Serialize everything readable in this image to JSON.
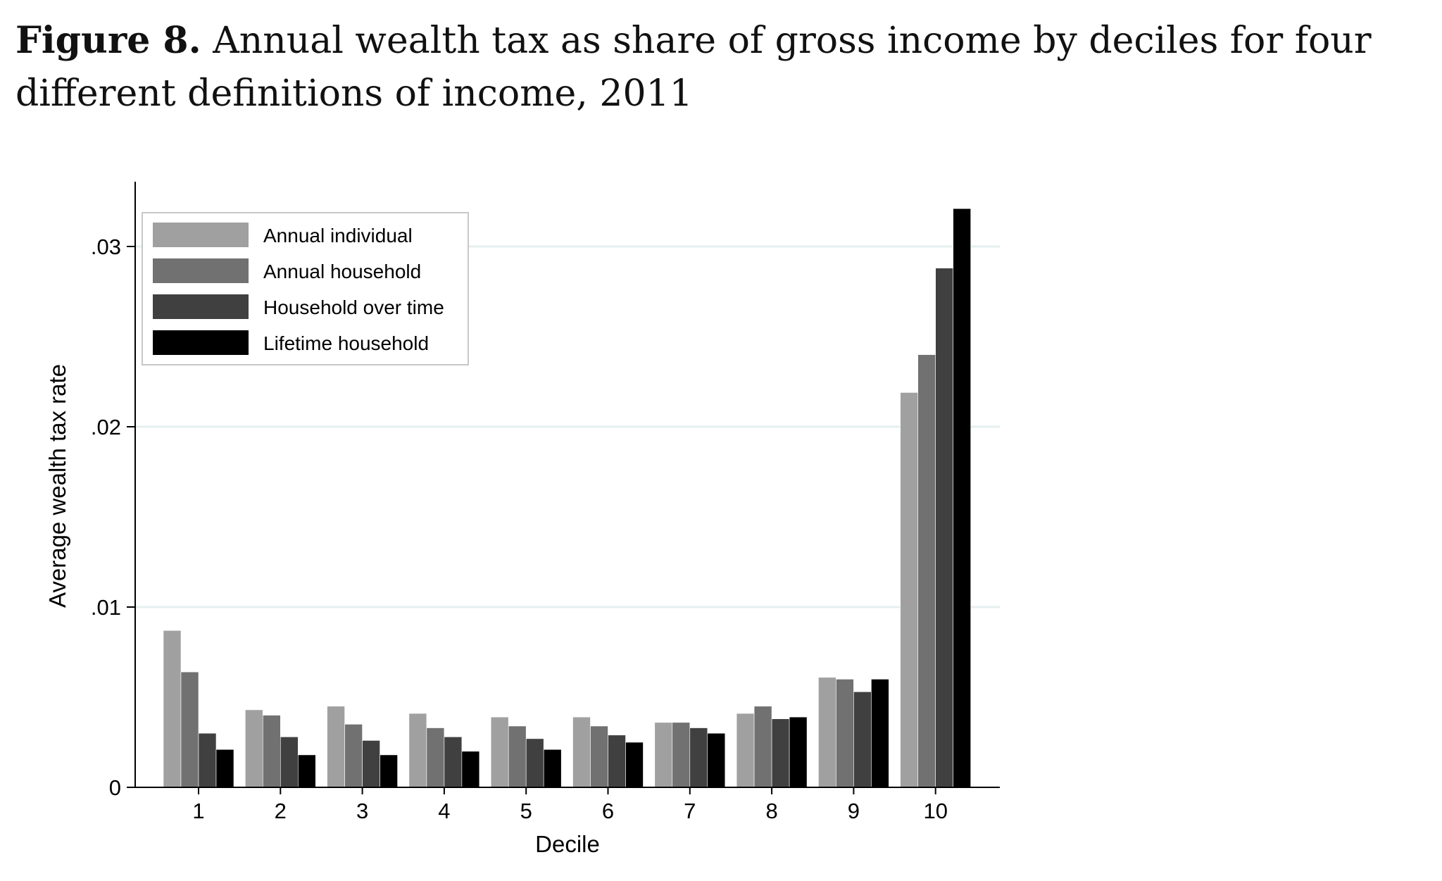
{
  "figure": {
    "label": "Figure 8.",
    "caption": "Annual wealth tax as share of gross income by deciles for four different definitions of income, 2011"
  },
  "chart_data": {
    "type": "bar",
    "title": "",
    "xlabel": "Decile",
    "ylabel": "Average wealth tax rate",
    "categories": [
      "1",
      "2",
      "3",
      "4",
      "5",
      "6",
      "7",
      "8",
      "9",
      "10"
    ],
    "ylim": [
      0,
      0.0335
    ],
    "yticks": [
      0,
      0.01,
      0.02,
      0.03
    ],
    "ytick_labels": [
      "0",
      ".01",
      ".02",
      ".03"
    ],
    "grid": true,
    "legend_position": "top-left",
    "series": [
      {
        "name": "Annual individual",
        "color": "#a0a0a0",
        "values": [
          0.0087,
          0.0043,
          0.0045,
          0.0041,
          0.0039,
          0.0039,
          0.0036,
          0.0041,
          0.0061,
          0.0219
        ]
      },
      {
        "name": "Annual household",
        "color": "#717171",
        "values": [
          0.0064,
          0.004,
          0.0035,
          0.0033,
          0.0034,
          0.0034,
          0.0036,
          0.0045,
          0.006,
          0.024
        ]
      },
      {
        "name": "Household over time",
        "color": "#404040",
        "values": [
          0.003,
          0.0028,
          0.0026,
          0.0028,
          0.0027,
          0.0029,
          0.0033,
          0.0038,
          0.0053,
          0.0288
        ]
      },
      {
        "name": "Lifetime household",
        "color": "#000000",
        "values": [
          0.0021,
          0.0018,
          0.0018,
          0.002,
          0.0021,
          0.0025,
          0.003,
          0.0039,
          0.006,
          0.0321
        ]
      }
    ]
  }
}
